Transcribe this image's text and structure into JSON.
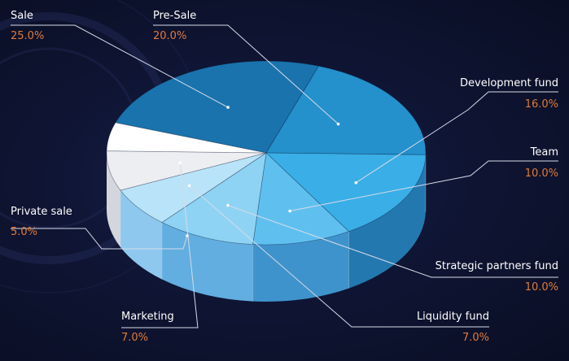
{
  "chart_data": {
    "type": "pie",
    "title": "",
    "slices": [
      {
        "label": "Sale",
        "value": 25.0,
        "display": "25.0%",
        "color": "#1a73ad",
        "side_color": "#0d3d63"
      },
      {
        "label": "Pre-Sale",
        "value": 20.0,
        "display": "20.0%",
        "color": "#2490cc",
        "side_color": "#165d8a"
      },
      {
        "label": "Development fund",
        "value": 16.0,
        "display": "16.0%",
        "color": "#3aaee6",
        "side_color": "#2478b0"
      },
      {
        "label": "Team",
        "value": 10.0,
        "display": "10.0%",
        "color": "#5fc0f0",
        "side_color": "#3f93cc"
      },
      {
        "label": "Strategic partners fund",
        "value": 10.0,
        "display": "10.0%",
        "color": "#8fd3f4",
        "side_color": "#62aee0"
      },
      {
        "label": "Liquidity fund",
        "value": 7.0,
        "display": "7.0%",
        "color": "#b9e3f8",
        "side_color": "#8fc8ee"
      },
      {
        "label": "Marketing",
        "value": 7.0,
        "display": "7.0%",
        "color": "#eceef2",
        "side_color": "#d3d6dd"
      },
      {
        "label": "Private sale",
        "value": 5.0,
        "display": "5.0%",
        "color": "#ffffff",
        "side_color": "#c6c9d0"
      }
    ]
  }
}
